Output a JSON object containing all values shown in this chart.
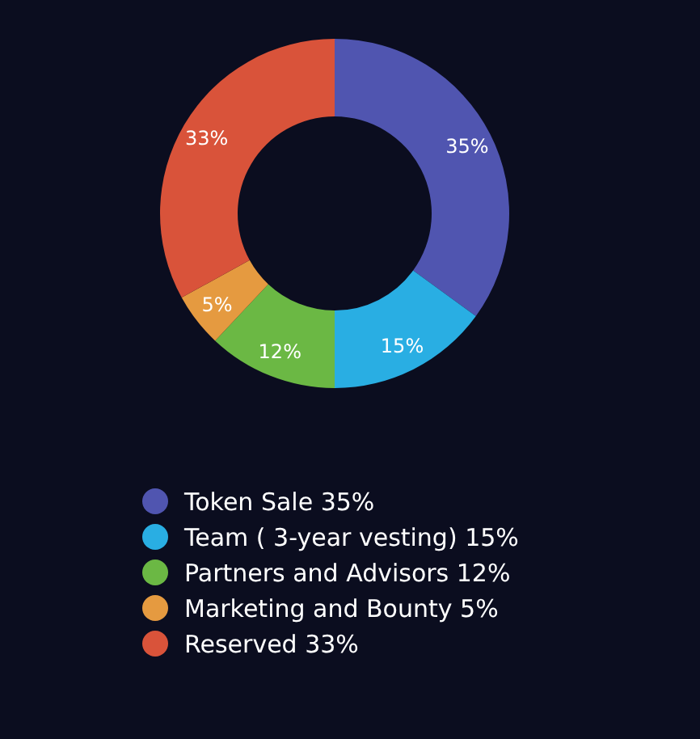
{
  "chart_data": {
    "type": "donut",
    "categories": [
      "Token Sale",
      "Team ( 3-year vesting)",
      "Partners and Advisors",
      "Marketing and Bounty",
      "Reserved"
    ],
    "values": [
      35,
      15,
      12,
      5,
      33
    ],
    "value_labels": [
      "35%",
      "15%",
      "12%",
      "5%",
      "33%"
    ],
    "colors": [
      "#5055b0",
      "#29aee3",
      "#6bb844",
      "#e59a40",
      "#d9533a"
    ],
    "legend": "bottom"
  }
}
